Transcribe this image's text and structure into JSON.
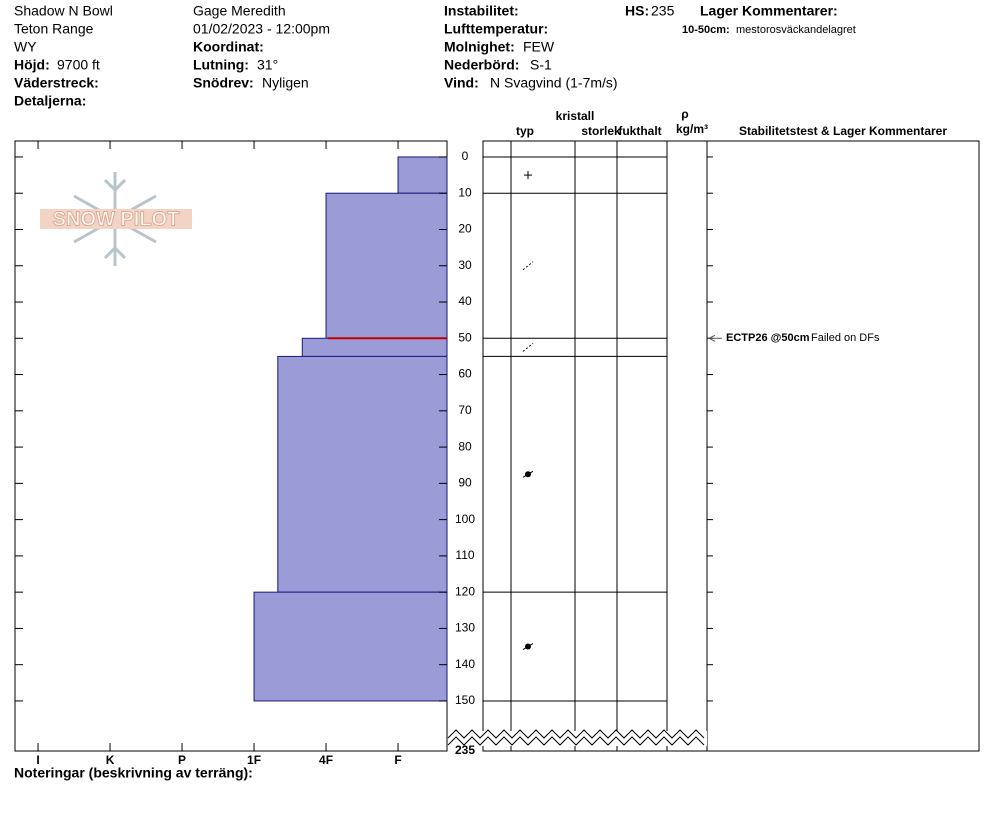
{
  "header": {
    "site": "Shadow N Bowl",
    "range": "Teton Range",
    "state": "WY",
    "elevation": {
      "label": "Höjd:",
      "value": "9700 ft"
    },
    "aspect": {
      "label": "Väderstreck:"
    },
    "details": {
      "label": "Detaljerna:"
    },
    "observer": "Gage Meredith",
    "datetime": "01/02/2023 - 12:00pm",
    "coordinates": {
      "label": "Koordinat:"
    },
    "slope": {
      "label": "Lutning:",
      "value": "31°"
    },
    "wind_loading": {
      "label": "Snödrev:",
      "value": "Nyligen"
    },
    "instability": {
      "label": "Instabilitet:"
    },
    "air_temp": {
      "label": "Lufttemperatur:"
    },
    "sky": {
      "label": "Molnighet:",
      "value": "FEW"
    },
    "precip": {
      "label": "Nederbörd:",
      "value": "S-1"
    },
    "wind": {
      "label": "Vind:",
      "value": "N Svagvind (1-7m/s)"
    },
    "hs": {
      "label": "HS:",
      "value": "235"
    },
    "layer_comments": {
      "label": "Lager Kommentarer:",
      "items": [
        {
          "range": "10-50cm:",
          "text": "mestorosväckandelagret"
        }
      ]
    }
  },
  "logo": "SNOW PILOT",
  "table_headers": {
    "crystal": "kristall",
    "type": "typ",
    "size": "storlek",
    "moisture": "fukthalt",
    "rho": "ρ",
    "density_unit": "kg/m³",
    "stability": "Stabilitetstest & Lager Kommentarer"
  },
  "footer": {
    "notes_label": "Noteringar (beskrivning av terräng):"
  },
  "chart_data": {
    "type": "bar",
    "color": "#9b9bd7",
    "edge_color": "#1a1a7a",
    "layers": [
      {
        "top": 0,
        "bottom": 10,
        "hardness": 1
      },
      {
        "top": 10,
        "bottom": 50,
        "hardness": 2
      },
      {
        "top": 50,
        "bottom": 55,
        "hardness": 2.33
      },
      {
        "top": 55,
        "bottom": 120,
        "hardness": 2.67
      },
      {
        "top": 120,
        "bottom": 150,
        "hardness": 3
      }
    ],
    "xlim": [
      6.32,
      0.32
    ],
    "xticks": [
      {
        "value": 6,
        "label": "I"
      },
      {
        "value": 5,
        "label": "K"
      },
      {
        "value": 4,
        "label": "P"
      },
      {
        "value": 3,
        "label": "1F"
      },
      {
        "value": 2,
        "label": "4F"
      },
      {
        "value": 1,
        "label": "F"
      }
    ],
    "ylim": [
      -4.4,
      163.8
    ],
    "yticks": [
      0,
      10,
      20,
      30,
      40,
      50,
      60,
      70,
      80,
      90,
      100,
      110,
      120,
      130,
      140,
      150
    ],
    "tests": [
      {
        "depth": 50,
        "label": "ECTP26 @50cm",
        "comment": "Failed on DFs",
        "color": "#c00000"
      }
    ]
  }
}
